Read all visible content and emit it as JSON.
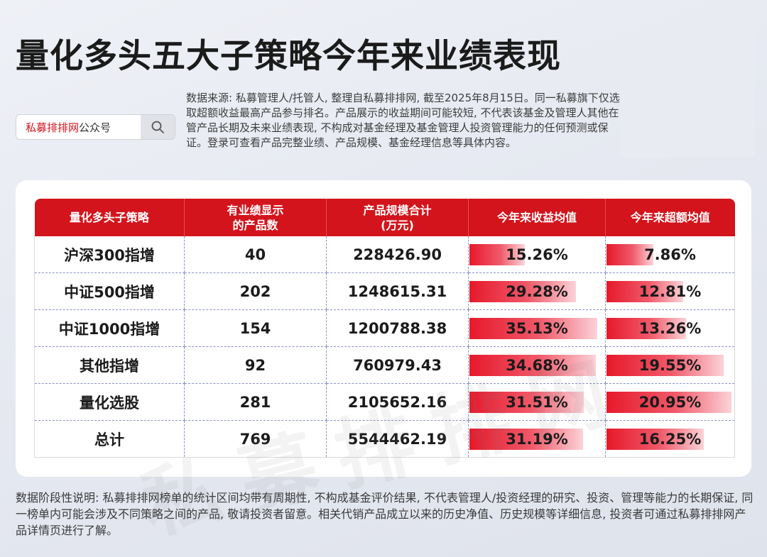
{
  "title": "量化多头五大子策略今年来业绩表现",
  "search": {
    "brand": "私募排排网",
    "suffix": "公众号"
  },
  "source_note": "数据来源: 私募管理人/托管人, 整理自私募排排网, 截至2025年8月15日。同一私募旗下仅选取超额收益最高产品参与排名。产品展示的收益期间可能较短, 不代表该基金及管理人其他在管产品长期及未来业绩表现, 不构成对基金经理及基金管理人投资管理能力的任何预测或保证。登录可查看产品完整业绩、产品规模、基金经理信息等具体内容。",
  "table": {
    "headers": [
      "量化多头子策略",
      "有业绩显示\n的产品数",
      "产品规模合计\n(万元)",
      "今年来收益均值",
      "今年来超额均值"
    ],
    "rows": [
      {
        "strategy": "沪深300指增",
        "count": "40",
        "scale": "228426.90",
        "ret": "15.26%",
        "excess": "7.86%",
        "ret_value": 15.26,
        "excess_value": 7.86
      },
      {
        "strategy": "中证500指增",
        "count": "202",
        "scale": "1248615.31",
        "ret": "29.28%",
        "excess": "12.81%",
        "ret_value": 29.28,
        "excess_value": 12.81
      },
      {
        "strategy": "中证1000指增",
        "count": "154",
        "scale": "1200788.38",
        "ret": "35.13%",
        "excess": "13.26%",
        "ret_value": 35.13,
        "excess_value": 13.26
      },
      {
        "strategy": "其他指增",
        "count": "92",
        "scale": "760979.43",
        "ret": "34.68%",
        "excess": "19.55%",
        "ret_value": 34.68,
        "excess_value": 19.55
      },
      {
        "strategy": "量化选股",
        "count": "281",
        "scale": "2105652.16",
        "ret": "31.51%",
        "excess": "20.95%",
        "ret_value": 31.51,
        "excess_value": 20.95
      },
      {
        "strategy": "总计",
        "count": "769",
        "scale": "5544462.19",
        "ret": "31.19%",
        "excess": "16.25%",
        "ret_value": 31.19,
        "excess_value": 16.25
      }
    ],
    "bar_color": "#e6192b",
    "header_color": "#d3141c"
  },
  "watermark": "私募排排网",
  "footnote": "数据阶段性说明: 私募排排网榜单的统计区间均带有周期性, 不构成基金评价结果, 不代表管理人/投资经理的研究、投资、管理等能力的长期保证, 同一榜单内可能会涉及不同策略之间的产品, 敬请投资者留意。相关代销产品成立以来的历史净值、历史规模等详细信息, 投资者可通过私募排排网产品详情页进行了解。"
}
